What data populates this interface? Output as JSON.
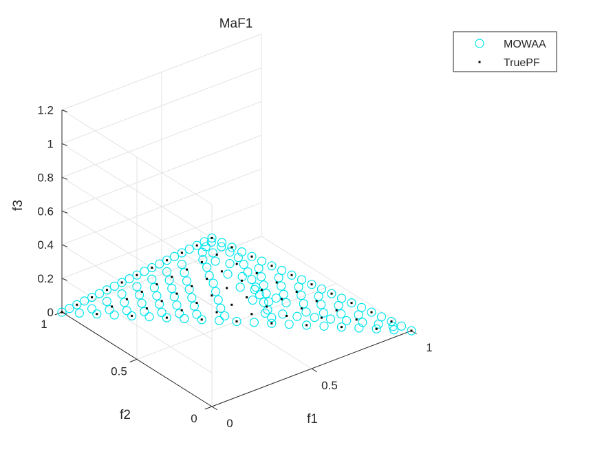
{
  "chart_data": {
    "type": "scatter3d",
    "title": "MaF1",
    "xlabel": "f1",
    "ylabel": "f2",
    "zlabel": "f3",
    "xlim": [
      0,
      1
    ],
    "ylim": [
      0,
      1
    ],
    "zlim": [
      0,
      1.2
    ],
    "xticks": [
      0,
      0.5,
      1
    ],
    "yticks": [
      0,
      0.5,
      1
    ],
    "zticks": [
      0,
      0.2,
      0.4,
      0.6,
      0.8,
      1,
      1.2
    ],
    "xtick_labels": [
      "0",
      "0.5",
      "1"
    ],
    "ytick_labels": [
      "0",
      "0.5",
      "1"
    ],
    "ztick_labels": [
      "0",
      "0.2",
      "0.4",
      "0.6",
      "0.8",
      "1",
      "1.2"
    ],
    "grid": true,
    "legend_position": "top-right",
    "legend": [
      {
        "label": "MOWAA",
        "marker": "circle",
        "color": "#00e5ee"
      },
      {
        "label": "TruePF",
        "marker": "dot",
        "color": "#000000"
      }
    ],
    "series": [
      {
        "name": "MOWAA",
        "marker": "circle",
        "color": "#00e5ee",
        "points": [
          [
            0,
            0,
            1
          ],
          [
            0.05,
            0,
            0.95
          ],
          [
            0.1,
            0,
            0.9
          ],
          [
            0.15,
            0,
            0.85
          ],
          [
            0.2,
            0,
            0.8
          ],
          [
            0.25,
            0,
            0.75
          ],
          [
            0.3,
            0,
            0.7
          ],
          [
            0.35,
            0,
            0.65
          ],
          [
            0.4,
            0,
            0.6
          ],
          [
            0.45,
            0,
            0.55
          ],
          [
            0.5,
            0,
            0.5
          ],
          [
            0.55,
            0,
            0.45
          ],
          [
            0.6,
            0,
            0.4
          ],
          [
            0.65,
            0,
            0.35
          ],
          [
            0.7,
            0,
            0.3
          ],
          [
            0.75,
            0,
            0.25
          ],
          [
            0.8,
            0,
            0.2
          ],
          [
            0.85,
            0,
            0.15
          ],
          [
            0.9,
            0,
            0.1
          ],
          [
            0.95,
            0,
            0.05
          ],
          [
            1,
            0,
            0
          ],
          [
            0,
            0.05,
            0.95
          ],
          [
            0,
            0.1,
            0.9
          ],
          [
            0,
            0.15,
            0.85
          ],
          [
            0,
            0.2,
            0.8
          ],
          [
            0,
            0.25,
            0.75
          ],
          [
            0,
            0.3,
            0.7
          ],
          [
            0,
            0.35,
            0.65
          ],
          [
            0,
            0.4,
            0.6
          ],
          [
            0,
            0.45,
            0.55
          ],
          [
            0,
            0.5,
            0.5
          ],
          [
            0,
            0.55,
            0.45
          ],
          [
            0,
            0.6,
            0.4
          ],
          [
            0,
            0.65,
            0.35
          ],
          [
            0,
            0.7,
            0.3
          ],
          [
            0,
            0.75,
            0.25
          ],
          [
            0,
            0.8,
            0.2
          ],
          [
            0,
            0.85,
            0.15
          ],
          [
            0,
            0.9,
            0.1
          ],
          [
            0,
            0.95,
            0.05
          ],
          [
            0,
            1,
            0
          ],
          [
            0.05,
            0.95,
            0
          ],
          [
            0.1,
            0.9,
            0
          ],
          [
            0.15,
            0.85,
            0
          ],
          [
            0.2,
            0.8,
            0
          ],
          [
            0.25,
            0.75,
            0
          ],
          [
            0.3,
            0.7,
            0
          ],
          [
            0.35,
            0.65,
            0
          ],
          [
            0.4,
            0.6,
            0
          ],
          [
            0.45,
            0.55,
            0
          ],
          [
            0.5,
            0.5,
            0
          ],
          [
            0.55,
            0.45,
            0
          ],
          [
            0.6,
            0.4,
            0
          ],
          [
            0.65,
            0.35,
            0
          ],
          [
            0.7,
            0.3,
            0
          ],
          [
            0.75,
            0.25,
            0
          ],
          [
            0.8,
            0.2,
            0
          ],
          [
            0.85,
            0.15,
            0
          ],
          [
            0.9,
            0.1,
            0
          ],
          [
            0.95,
            0.05,
            0
          ],
          [
            0.02,
            0.03,
            0.95
          ],
          [
            0.07,
            0.03,
            0.9
          ],
          [
            0.03,
            0.08,
            0.89
          ],
          [
            0.12,
            0.04,
            0.84
          ],
          [
            0.05,
            0.13,
            0.82
          ],
          [
            0.17,
            0.05,
            0.78
          ],
          [
            0.09,
            0.18,
            0.73
          ],
          [
            0.22,
            0.08,
            0.7
          ],
          [
            0.14,
            0.22,
            0.64
          ],
          [
            0.27,
            0.12,
            0.61
          ],
          [
            0.19,
            0.27,
            0.54
          ],
          [
            0.32,
            0.16,
            0.52
          ],
          [
            0.24,
            0.31,
            0.45
          ],
          [
            0.37,
            0.2,
            0.43
          ],
          [
            0.29,
            0.36,
            0.35
          ],
          [
            0.42,
            0.24,
            0.34
          ],
          [
            0.34,
            0.41,
            0.25
          ],
          [
            0.47,
            0.28,
            0.25
          ],
          [
            0.39,
            0.46,
            0.15
          ],
          [
            0.52,
            0.32,
            0.16
          ],
          [
            0.44,
            0.5,
            0.06
          ],
          [
            0.57,
            0.36,
            0.07
          ],
          [
            0.08,
            0.1,
            0.82
          ],
          [
            0.13,
            0.15,
            0.72
          ],
          [
            0.18,
            0.12,
            0.7
          ],
          [
            0.23,
            0.2,
            0.57
          ],
          [
            0.28,
            0.17,
            0.55
          ],
          [
            0.33,
            0.25,
            0.42
          ],
          [
            0.38,
            0.22,
            0.4
          ],
          [
            0.43,
            0.3,
            0.27
          ],
          [
            0.48,
            0.26,
            0.26
          ],
          [
            0.53,
            0.35,
            0.12
          ],
          [
            0.58,
            0.3,
            0.12
          ],
          [
            0.63,
            0.27,
            0.1
          ],
          [
            0.68,
            0.22,
            0.1
          ],
          [
            0.73,
            0.18,
            0.09
          ],
          [
            0.78,
            0.14,
            0.08
          ],
          [
            0.83,
            0.1,
            0.07
          ],
          [
            0.88,
            0.06,
            0.06
          ],
          [
            0.93,
            0.03,
            0.04
          ],
          [
            0.06,
            0.28,
            0.66
          ],
          [
            0.06,
            0.38,
            0.56
          ],
          [
            0.06,
            0.48,
            0.46
          ],
          [
            0.06,
            0.58,
            0.36
          ],
          [
            0.06,
            0.68,
            0.26
          ],
          [
            0.06,
            0.78,
            0.16
          ],
          [
            0.06,
            0.88,
            0.06
          ],
          [
            0.11,
            0.33,
            0.56
          ],
          [
            0.11,
            0.43,
            0.46
          ],
          [
            0.11,
            0.53,
            0.36
          ],
          [
            0.11,
            0.63,
            0.26
          ],
          [
            0.11,
            0.73,
            0.16
          ],
          [
            0.11,
            0.83,
            0.06
          ],
          [
            0.16,
            0.38,
            0.46
          ],
          [
            0.16,
            0.48,
            0.36
          ],
          [
            0.16,
            0.58,
            0.26
          ],
          [
            0.16,
            0.68,
            0.16
          ],
          [
            0.16,
            0.78,
            0.06
          ],
          [
            0.21,
            0.43,
            0.36
          ],
          [
            0.21,
            0.53,
            0.26
          ],
          [
            0.21,
            0.63,
            0.16
          ],
          [
            0.21,
            0.73,
            0.06
          ],
          [
            0.26,
            0.48,
            0.26
          ],
          [
            0.26,
            0.58,
            0.16
          ],
          [
            0.26,
            0.68,
            0.06
          ],
          [
            0.31,
            0.53,
            0.16
          ],
          [
            0.31,
            0.63,
            0.06
          ],
          [
            0.36,
            0.58,
            0.06
          ],
          [
            0.28,
            0.06,
            0.66
          ],
          [
            0.38,
            0.06,
            0.56
          ],
          [
            0.48,
            0.06,
            0.46
          ],
          [
            0.58,
            0.06,
            0.36
          ],
          [
            0.68,
            0.06,
            0.26
          ],
          [
            0.78,
            0.06,
            0.16
          ],
          [
            0.33,
            0.11,
            0.56
          ],
          [
            0.43,
            0.11,
            0.46
          ],
          [
            0.53,
            0.11,
            0.36
          ],
          [
            0.63,
            0.11,
            0.26
          ],
          [
            0.73,
            0.11,
            0.16
          ],
          [
            0.38,
            0.16,
            0.46
          ],
          [
            0.48,
            0.16,
            0.36
          ],
          [
            0.58,
            0.16,
            0.26
          ],
          [
            0.68,
            0.16,
            0.16
          ],
          [
            0.43,
            0.21,
            0.36
          ],
          [
            0.53,
            0.21,
            0.26
          ],
          [
            0.63,
            0.21,
            0.16
          ],
          [
            0.48,
            0.21,
            0.31
          ]
        ]
      },
      {
        "name": "TruePF",
        "marker": "dot",
        "color": "#000000",
        "points": [
          [
            0,
            0,
            1
          ],
          [
            0.1,
            0,
            0.9
          ],
          [
            0.2,
            0,
            0.8
          ],
          [
            0.3,
            0,
            0.7
          ],
          [
            0.4,
            0,
            0.6
          ],
          [
            0.5,
            0,
            0.5
          ],
          [
            0.6,
            0,
            0.4
          ],
          [
            0.7,
            0,
            0.3
          ],
          [
            0.8,
            0,
            0.2
          ],
          [
            0.9,
            0,
            0.1
          ],
          [
            1,
            0,
            0
          ],
          [
            0,
            0.1,
            0.9
          ],
          [
            0.1,
            0.1,
            0.8
          ],
          [
            0.2,
            0.1,
            0.7
          ],
          [
            0.3,
            0.1,
            0.6
          ],
          [
            0.4,
            0.1,
            0.5
          ],
          [
            0.5,
            0.1,
            0.4
          ],
          [
            0.6,
            0.1,
            0.3
          ],
          [
            0.7,
            0.1,
            0.2
          ],
          [
            0.8,
            0.1,
            0.1
          ],
          [
            0.9,
            0.1,
            0
          ],
          [
            0,
            0.2,
            0.8
          ],
          [
            0.1,
            0.2,
            0.7
          ],
          [
            0.2,
            0.2,
            0.6
          ],
          [
            0.3,
            0.2,
            0.5
          ],
          [
            0.4,
            0.2,
            0.4
          ],
          [
            0.5,
            0.2,
            0.3
          ],
          [
            0.6,
            0.2,
            0.2
          ],
          [
            0.7,
            0.2,
            0.1
          ],
          [
            0.8,
            0.2,
            0
          ],
          [
            0,
            0.3,
            0.7
          ],
          [
            0.1,
            0.3,
            0.6
          ],
          [
            0.2,
            0.3,
            0.5
          ],
          [
            0.3,
            0.3,
            0.4
          ],
          [
            0.4,
            0.3,
            0.3
          ],
          [
            0.5,
            0.3,
            0.2
          ],
          [
            0.6,
            0.3,
            0.1
          ],
          [
            0.7,
            0.3,
            0
          ],
          [
            0,
            0.4,
            0.6
          ],
          [
            0.1,
            0.4,
            0.5
          ],
          [
            0.2,
            0.4,
            0.4
          ],
          [
            0.3,
            0.4,
            0.3
          ],
          [
            0.4,
            0.4,
            0.2
          ],
          [
            0.5,
            0.4,
            0.1
          ],
          [
            0.6,
            0.4,
            0
          ],
          [
            0,
            0.5,
            0.5
          ],
          [
            0.1,
            0.5,
            0.4
          ],
          [
            0.2,
            0.5,
            0.3
          ],
          [
            0.3,
            0.5,
            0.2
          ],
          [
            0.4,
            0.5,
            0.1
          ],
          [
            0.5,
            0.5,
            0
          ],
          [
            0,
            0.6,
            0.4
          ],
          [
            0.1,
            0.6,
            0.3
          ],
          [
            0.2,
            0.6,
            0.2
          ],
          [
            0.3,
            0.6,
            0.1
          ],
          [
            0.4,
            0.6,
            0
          ],
          [
            0,
            0.7,
            0.3
          ],
          [
            0.1,
            0.7,
            0.2
          ],
          [
            0.2,
            0.7,
            0.1
          ],
          [
            0.3,
            0.7,
            0
          ],
          [
            0,
            0.8,
            0.2
          ],
          [
            0.1,
            0.8,
            0.1
          ],
          [
            0.2,
            0.8,
            0
          ],
          [
            0,
            0.9,
            0.1
          ],
          [
            0.1,
            0.9,
            0
          ],
          [
            0,
            1,
            0
          ]
        ]
      }
    ]
  }
}
